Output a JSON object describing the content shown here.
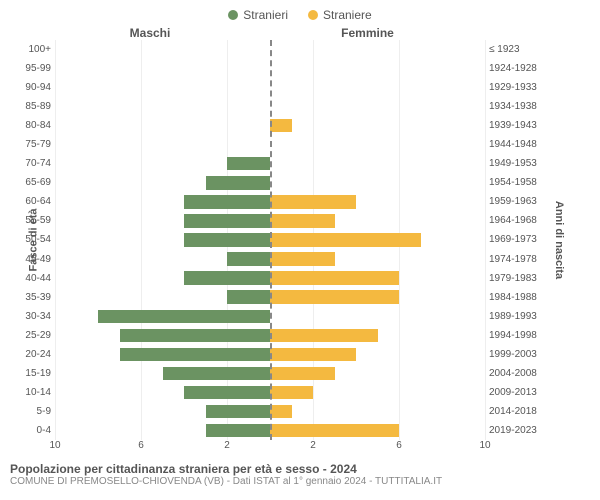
{
  "legend": {
    "male": {
      "label": "Stranieri",
      "color": "#6b9362"
    },
    "female": {
      "label": "Straniere",
      "color": "#f4b940"
    }
  },
  "headers": {
    "left": "Maschi",
    "right": "Femmine"
  },
  "y_left_title": "Fasce di età",
  "y_right_title": "Anni di nascita",
  "age_groups": [
    "100+",
    "95-99",
    "90-94",
    "85-89",
    "80-84",
    "75-79",
    "70-74",
    "65-69",
    "60-64",
    "55-59",
    "50-54",
    "45-49",
    "40-44",
    "35-39",
    "30-34",
    "25-29",
    "20-24",
    "15-19",
    "10-14",
    "5-9",
    "0-4"
  ],
  "birth_years": [
    "≤ 1923",
    "1924-1928",
    "1929-1933",
    "1934-1938",
    "1939-1943",
    "1944-1948",
    "1949-1953",
    "1954-1958",
    "1959-1963",
    "1964-1968",
    "1969-1973",
    "1974-1978",
    "1979-1983",
    "1984-1988",
    "1989-1993",
    "1994-1998",
    "1999-2003",
    "2004-2008",
    "2009-2013",
    "2014-2018",
    "2019-2023"
  ],
  "male_values": [
    0,
    0,
    0,
    0,
    0,
    0,
    2,
    3,
    4,
    4,
    4,
    2,
    4,
    2,
    8,
    7,
    7,
    5,
    4,
    3,
    3
  ],
  "female_values": [
    0,
    0,
    0,
    0,
    1,
    0,
    0,
    0,
    4,
    3,
    7,
    3,
    6,
    6,
    0,
    5,
    4,
    3,
    2,
    1,
    6
  ],
  "x_max": 10,
  "x_ticks_left": [
    10,
    6,
    2
  ],
  "x_ticks_right": [
    2,
    6,
    10
  ],
  "colors": {
    "male_bar": "#6b9362",
    "female_bar": "#f4b940",
    "grid": "#eeeeee",
    "center_dash": "#888888",
    "bg": "#ffffff"
  },
  "title": "Popolazione per cittadinanza straniera per età e sesso - 2024",
  "subtitle": "COMUNE DI PREMOSELLO-CHIOVENDA (VB) - Dati ISTAT al 1° gennaio 2024 - TUTTITALIA.IT"
}
